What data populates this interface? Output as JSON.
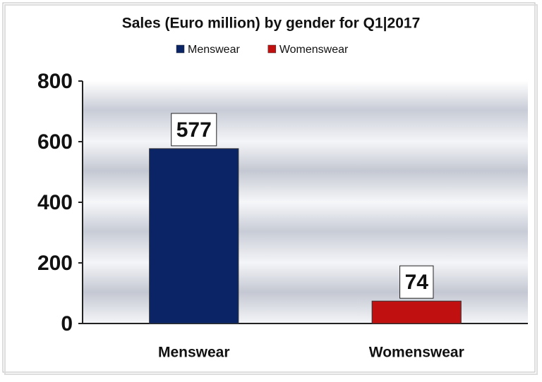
{
  "chart_data": {
    "type": "bar",
    "title": "Sales (Euro million) by gender for Q1|2017",
    "categories": [
      "Menswear",
      "Womenswear"
    ],
    "series": [
      {
        "name": "Menswear",
        "color": "#0b2466",
        "values": [
          577,
          null
        ]
      },
      {
        "name": "Womenswear",
        "color": "#c01010",
        "values": [
          null,
          74
        ]
      }
    ],
    "ylim": [
      0,
      800
    ],
    "yticks": [
      0,
      200,
      400,
      600,
      800
    ],
    "grid": false,
    "legend": "top"
  }
}
